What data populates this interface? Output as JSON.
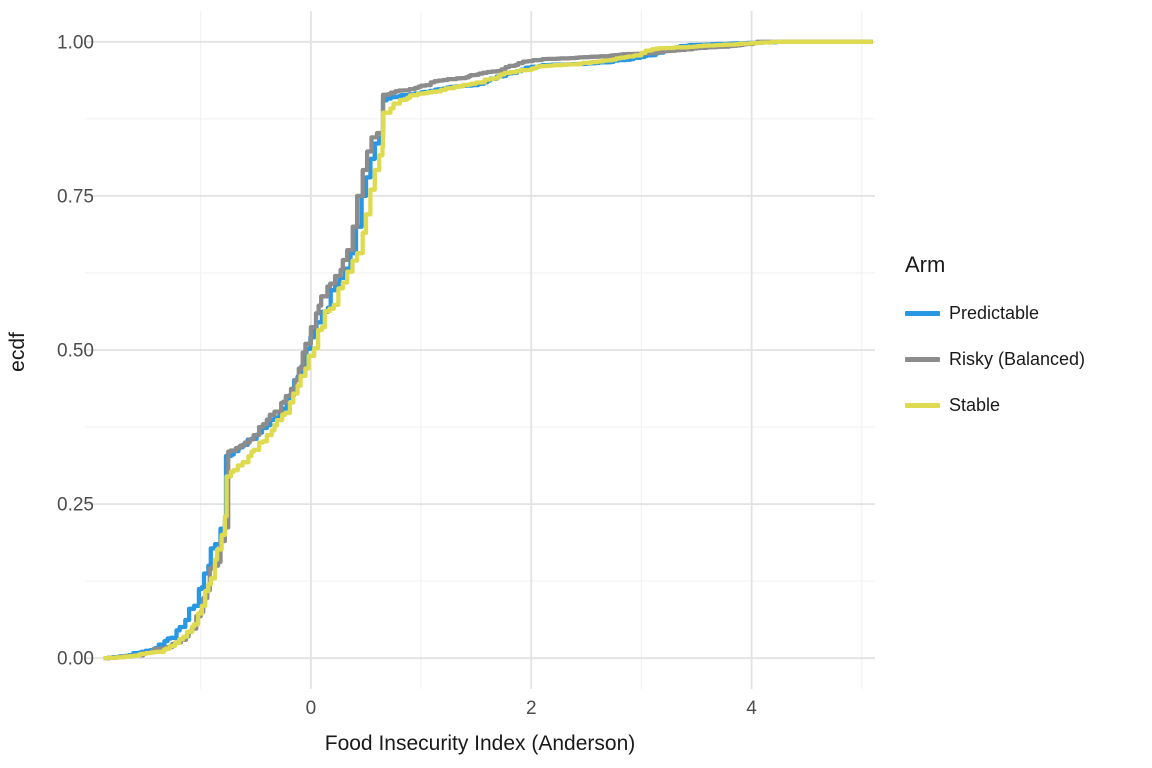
{
  "chart_data": {
    "type": "line",
    "subtype": "ecdf-step",
    "title": "",
    "xlabel": "Food Insecurity Index (Anderson)",
    "ylabel": "ecdf",
    "xlim": [
      -2.05,
      5.12
    ],
    "ylim": [
      -0.05,
      1.05
    ],
    "grid": "major+minor",
    "legend_title": "Arm",
    "legend_position": "right",
    "x_axis": {
      "title": "Food Insecurity Index (Anderson)",
      "tick_values": [
        0,
        2,
        4
      ],
      "tick_labels": [
        "0",
        "2",
        "4"
      ],
      "minor_values": [
        -1,
        1,
        3,
        5
      ]
    },
    "y_axis": {
      "title": "ecdf",
      "tick_values": [
        0,
        0.25,
        0.5,
        0.75,
        1
      ],
      "tick_labels": [
        "0.00",
        "0.25",
        "0.50",
        "0.75",
        "1.00"
      ],
      "minor_values": [
        0.125,
        0.375,
        0.625,
        0.875
      ]
    },
    "colors": {
      "grid_major": "#E2E2E2",
      "grid_minor": "#F1F1F1",
      "tick_text": "#4D4D4D",
      "title_text": "#1A1A1A",
      "background": "#FFFFFF"
    },
    "series": [
      {
        "name": "Predictable",
        "color": "#2897E4",
        "points": [
          [
            -1.88,
            0
          ],
          [
            -1.65,
            0.005
          ],
          [
            -1.5,
            0.012
          ],
          [
            -1.38,
            0.022
          ],
          [
            -1.3,
            0.032
          ],
          [
            -1.22,
            0.045
          ],
          [
            -1.14,
            0.062
          ],
          [
            -1.06,
            0.085
          ],
          [
            -0.99,
            0.115
          ],
          [
            -0.93,
            0.15
          ],
          [
            -0.87,
            0.185
          ],
          [
            -0.82,
            0.21
          ],
          [
            -0.78,
            0.222
          ],
          [
            -0.77,
            0.225
          ],
          [
            -0.77,
            0.328
          ],
          [
            -0.7,
            0.336
          ],
          [
            -0.62,
            0.346
          ],
          [
            -0.54,
            0.356
          ],
          [
            -0.47,
            0.366
          ],
          [
            -0.4,
            0.378
          ],
          [
            -0.33,
            0.39
          ],
          [
            -0.26,
            0.405
          ],
          [
            -0.19,
            0.427
          ],
          [
            -0.12,
            0.457
          ],
          [
            -0.04,
            0.502
          ],
          [
            0.03,
            0.535
          ],
          [
            0.1,
            0.562
          ],
          [
            0.18,
            0.597
          ],
          [
            0.26,
            0.617
          ],
          [
            0.31,
            0.632
          ],
          [
            0.36,
            0.657
          ],
          [
            0.41,
            0.7
          ],
          [
            0.46,
            0.75
          ],
          [
            0.5,
            0.78
          ],
          [
            0.54,
            0.81
          ],
          [
            0.58,
            0.835
          ],
          [
            0.62,
            0.845
          ],
          [
            0.655,
            0.849
          ],
          [
            0.655,
            0.905
          ],
          [
            0.8,
            0.912
          ],
          [
            1.0,
            0.918
          ],
          [
            1.2,
            0.924
          ],
          [
            1.4,
            0.929
          ],
          [
            1.6,
            0.937
          ],
          [
            1.8,
            0.949
          ],
          [
            1.95,
            0.958
          ],
          [
            2.1,
            0.962
          ],
          [
            2.4,
            0.964
          ],
          [
            2.7,
            0.967
          ],
          [
            2.9,
            0.972
          ],
          [
            3.05,
            0.978
          ],
          [
            3.2,
            0.986
          ],
          [
            3.35,
            0.993
          ],
          [
            3.5,
            0.995
          ],
          [
            3.8,
            0.997
          ],
          [
            4.1,
            0.999
          ],
          [
            4.25,
            1.0
          ],
          [
            5.1,
            1.0
          ]
        ]
      },
      {
        "name": "Risky (Balanced)",
        "color": "#8C8C8C",
        "points": [
          [
            -1.88,
            0
          ],
          [
            -1.62,
            0.004
          ],
          [
            -1.45,
            0.01
          ],
          [
            -1.3,
            0.018
          ],
          [
            -1.18,
            0.03
          ],
          [
            -1.08,
            0.048
          ],
          [
            -1.0,
            0.075
          ],
          [
            -0.94,
            0.11
          ],
          [
            -0.88,
            0.15
          ],
          [
            -0.82,
            0.19
          ],
          [
            -0.78,
            0.212
          ],
          [
            -0.75,
            0.218
          ],
          [
            -0.75,
            0.335
          ],
          [
            -0.68,
            0.341
          ],
          [
            -0.6,
            0.35
          ],
          [
            -0.52,
            0.362
          ],
          [
            -0.47,
            0.375
          ],
          [
            -0.4,
            0.387
          ],
          [
            -0.33,
            0.4
          ],
          [
            -0.25,
            0.416
          ],
          [
            -0.18,
            0.437
          ],
          [
            -0.11,
            0.47
          ],
          [
            -0.05,
            0.51
          ],
          [
            0.0,
            0.537
          ],
          [
            0.07,
            0.572
          ],
          [
            0.15,
            0.603
          ],
          [
            0.22,
            0.62
          ],
          [
            0.27,
            0.63
          ],
          [
            0.33,
            0.662
          ],
          [
            0.38,
            0.7
          ],
          [
            0.42,
            0.75
          ],
          [
            0.47,
            0.792
          ],
          [
            0.51,
            0.822
          ],
          [
            0.55,
            0.845
          ],
          [
            0.6,
            0.852
          ],
          [
            0.655,
            0.856
          ],
          [
            0.655,
            0.914
          ],
          [
            0.8,
            0.921
          ],
          [
            1.0,
            0.929
          ],
          [
            1.2,
            0.938
          ],
          [
            1.45,
            0.946
          ],
          [
            1.6,
            0.951
          ],
          [
            1.8,
            0.961
          ],
          [
            1.95,
            0.968
          ],
          [
            2.1,
            0.972
          ],
          [
            2.4,
            0.974
          ],
          [
            2.7,
            0.977
          ],
          [
            3.0,
            0.981
          ],
          [
            3.2,
            0.985
          ],
          [
            3.45,
            0.988
          ],
          [
            3.7,
            0.992
          ],
          [
            3.9,
            0.995
          ],
          [
            4.05,
            1.0
          ],
          [
            5.1,
            1.0
          ]
        ]
      },
      {
        "name": "Stable",
        "color": "#DFDB50",
        "points": [
          [
            -1.88,
            0
          ],
          [
            -1.6,
            0.004
          ],
          [
            -1.42,
            0.01
          ],
          [
            -1.28,
            0.02
          ],
          [
            -1.16,
            0.035
          ],
          [
            -1.06,
            0.055
          ],
          [
            -0.99,
            0.085
          ],
          [
            -0.93,
            0.12
          ],
          [
            -0.87,
            0.16
          ],
          [
            -0.81,
            0.2
          ],
          [
            -0.78,
            0.23
          ],
          [
            -0.765,
            0.24
          ],
          [
            -0.765,
            0.295
          ],
          [
            -0.7,
            0.305
          ],
          [
            -0.62,
            0.318
          ],
          [
            -0.54,
            0.335
          ],
          [
            -0.47,
            0.35
          ],
          [
            -0.4,
            0.362
          ],
          [
            -0.33,
            0.378
          ],
          [
            -0.26,
            0.395
          ],
          [
            -0.19,
            0.415
          ],
          [
            -0.12,
            0.442
          ],
          [
            -0.05,
            0.47
          ],
          [
            0.03,
            0.503
          ],
          [
            0.1,
            0.537
          ],
          [
            0.17,
            0.567
          ],
          [
            0.25,
            0.6
          ],
          [
            0.33,
            0.627
          ],
          [
            0.42,
            0.657
          ],
          [
            0.47,
            0.69
          ],
          [
            0.5,
            0.72
          ],
          [
            0.54,
            0.76
          ],
          [
            0.58,
            0.792
          ],
          [
            0.62,
            0.816
          ],
          [
            0.65,
            0.83
          ],
          [
            0.655,
            0.83
          ],
          [
            0.655,
            0.885
          ],
          [
            0.75,
            0.9
          ],
          [
            0.9,
            0.913
          ],
          [
            1.1,
            0.919
          ],
          [
            1.3,
            0.927
          ],
          [
            1.5,
            0.934
          ],
          [
            1.7,
            0.944
          ],
          [
            1.9,
            0.954
          ],
          [
            2.05,
            0.96
          ],
          [
            2.3,
            0.963
          ],
          [
            2.6,
            0.968
          ],
          [
            2.85,
            0.975
          ],
          [
            3.0,
            0.982
          ],
          [
            3.1,
            0.988
          ],
          [
            3.3,
            0.991
          ],
          [
            3.6,
            0.994
          ],
          [
            3.9,
            0.997
          ],
          [
            4.2,
            1.0
          ],
          [
            5.1,
            1.0
          ]
        ]
      }
    ]
  }
}
